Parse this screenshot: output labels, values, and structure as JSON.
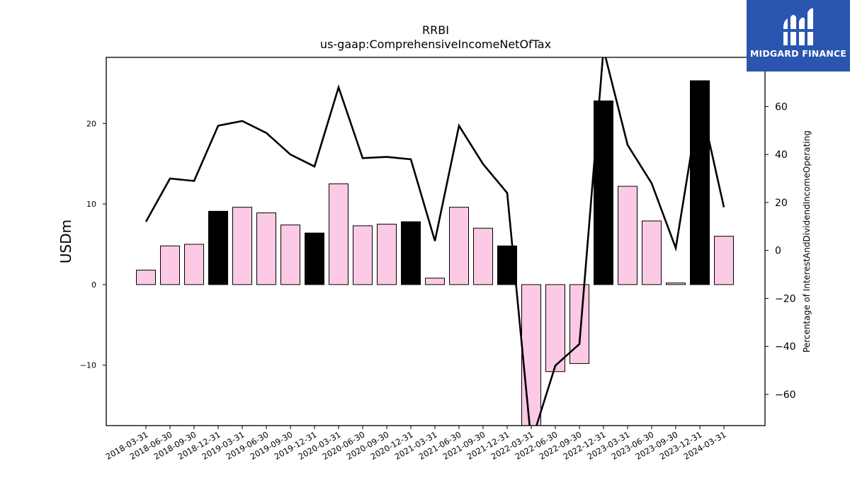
{
  "chart_data": {
    "type": "bar",
    "title": "RRBI",
    "subtitle": "us-gaap:ComprehensiveIncomeNetOfTax",
    "ylabel": "USDm",
    "y2label": "Percentage of InterestAndDividendIncomeOperating",
    "categories": [
      "2018-03-31",
      "2018-06-30",
      "2018-09-30",
      "2018-12-31",
      "2019-03-31",
      "2019-06-30",
      "2019-09-30",
      "2019-12-31",
      "2020-03-31",
      "2020-06-30",
      "2020-09-30",
      "2020-12-31",
      "2021-03-31",
      "2021-06-30",
      "2021-09-30",
      "2021-12-31",
      "2022-03-31",
      "2022-06-30",
      "2022-09-30",
      "2022-12-31",
      "2023-03-31",
      "2023-06-30",
      "2023-09-30",
      "2023-12-31",
      "2024-03-31"
    ],
    "series": [
      {
        "values": [
          1.8,
          4.8,
          5.0,
          9.1,
          9.6,
          8.9,
          7.4,
          6.4,
          12.5,
          7.3,
          7.5,
          7.8,
          0.8,
          9.6,
          7.0,
          4.8,
          -17.5,
          -10.8,
          -9.8,
          22.8,
          12.2,
          7.9,
          0.2,
          25.3,
          6.0
        ],
        "axis": "left"
      },
      {
        "values": [
          12,
          30,
          29,
          52,
          54,
          49,
          40,
          35,
          68,
          38.5,
          39,
          38,
          4,
          52,
          36,
          24,
          -80,
          -48,
          -39,
          84,
          44,
          28,
          1,
          63,
          18
        ],
        "axis": "right"
      }
    ],
    "highlight": [
      false,
      false,
      false,
      true,
      false,
      false,
      false,
      true,
      false,
      false,
      false,
      true,
      false,
      false,
      false,
      true,
      false,
      false,
      false,
      true,
      false,
      false,
      false,
      true,
      false
    ],
    "ylim": [
      -17.5,
      28.2
    ],
    "y2lim": [
      -73,
      80.5
    ],
    "yticks": [
      -10,
      0,
      10,
      20
    ],
    "y2ticks": [
      -60,
      -40,
      -20,
      0,
      20,
      40,
      60,
      80
    ],
    "colors": {
      "bar": "#fccae4",
      "highlight_bar": "#000000",
      "line": "#000000"
    }
  },
  "logo": {
    "text": "MIDGARD FINANCE",
    "bg": "#2a56b0"
  }
}
